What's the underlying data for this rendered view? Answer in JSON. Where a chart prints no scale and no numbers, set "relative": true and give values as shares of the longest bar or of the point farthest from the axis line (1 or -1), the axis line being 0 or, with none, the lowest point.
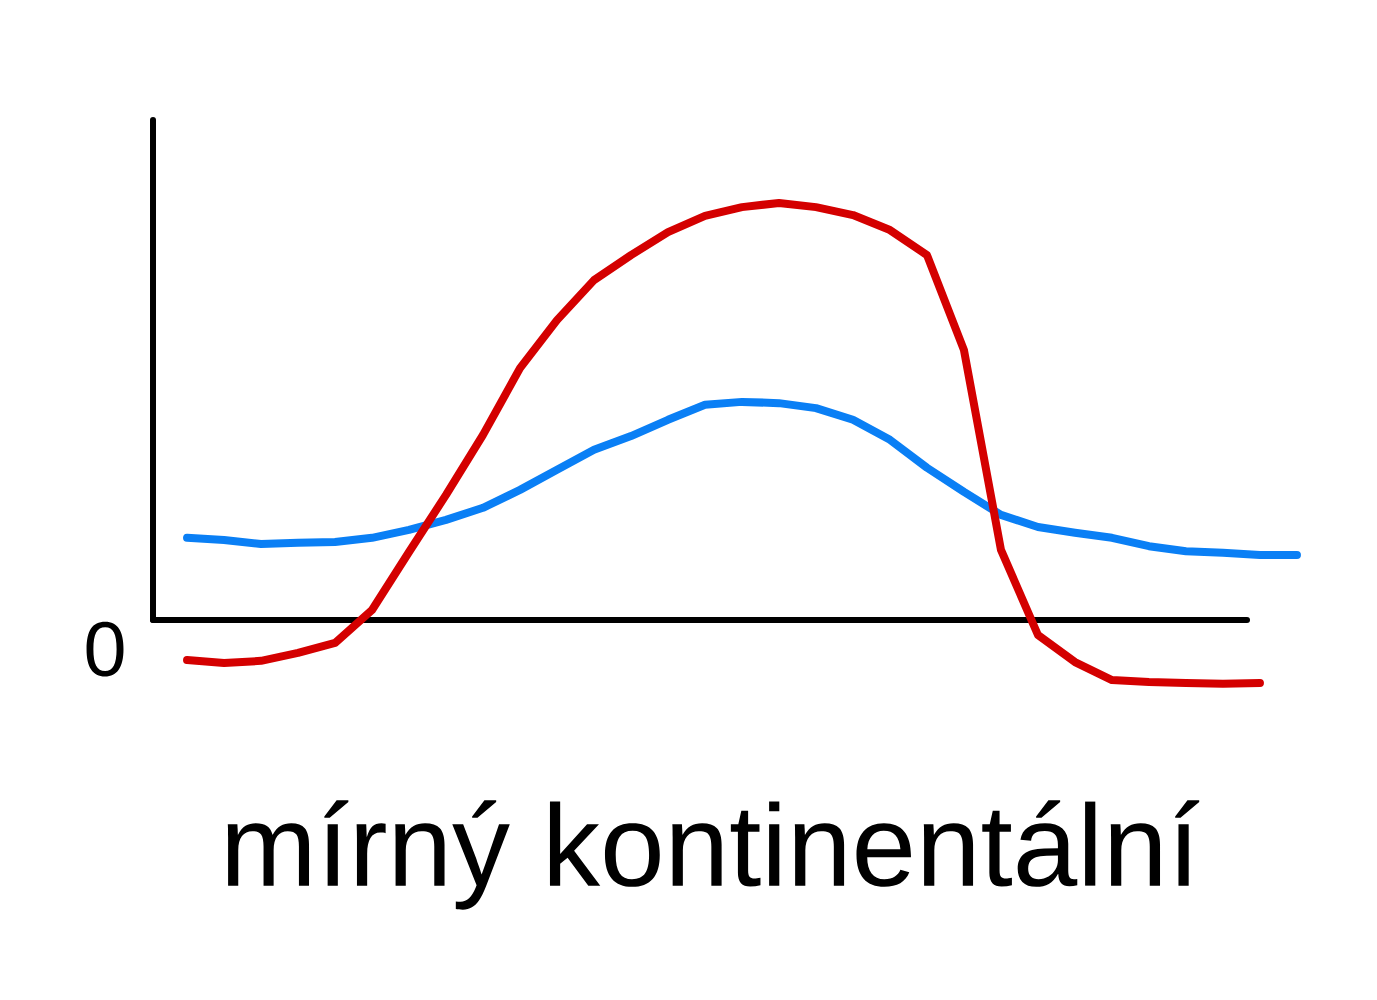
{
  "chart_data": {
    "type": "line",
    "title": "mírný kontinentální",
    "annotations": [
      "0"
    ],
    "relative": true,
    "categories": [
      null,
      null,
      null,
      null,
      null,
      null,
      null,
      null,
      null,
      null,
      null,
      null,
      null,
      null,
      null,
      null,
      null,
      null,
      null,
      null,
      null,
      null,
      null,
      null,
      null,
      null,
      null,
      null,
      null,
      null,
      null
    ],
    "series": [
      {
        "color": "#0a7ff5",
        "values": [
          0.197,
          0.192,
          0.182,
          0.185,
          0.187,
          0.197,
          0.216,
          0.24,
          0.269,
          0.312,
          0.36,
          0.408,
          0.441,
          0.48,
          0.516,
          0.523,
          0.52,
          0.508,
          0.48,
          0.432,
          0.365,
          0.307,
          0.252,
          0.223,
          0.209,
          0.197,
          0.177,
          0.165,
          0.161,
          0.156,
          0.156
        ]
      },
      {
        "color": "#d40000",
        "values": [
          -0.096,
          -0.103,
          -0.098,
          -0.079,
          -0.055,
          0.024,
          0.163,
          0.3,
          0.444,
          0.604,
          0.719,
          0.815,
          0.875,
          0.93,
          0.969,
          0.99,
          1.0,
          0.99,
          0.971,
          0.935,
          0.875,
          0.647,
          0.168,
          -0.036,
          -0.101,
          -0.144,
          -0.149,
          -0.151,
          -0.153,
          -0.151,
          null
        ]
      }
    ]
  }
}
